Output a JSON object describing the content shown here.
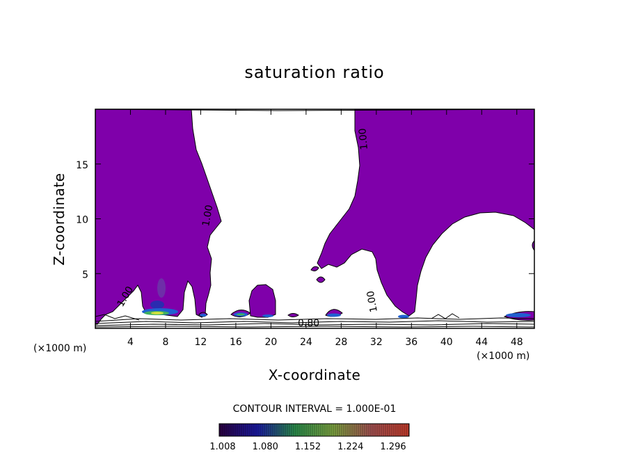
{
  "chart_data": {
    "type": "heatmap",
    "title": "saturation ratio",
    "xlabel": "X-coordinate",
    "ylabel": "Z-coordinate",
    "x_unit_label": "(×1000 m)",
    "xlim": [
      0,
      50
    ],
    "ylim": [
      0,
      20
    ],
    "x_ticks": [
      4,
      8,
      12,
      16,
      20,
      24,
      28,
      32,
      36,
      40,
      44,
      48
    ],
    "y_ticks": [
      5,
      10,
      15
    ],
    "contour_interval_label": "CONTOUR INTERVAL = 1.000E-01",
    "contour_labels": [
      "1.00",
      "1.00",
      "1.00",
      "1.00",
      "0.80"
    ],
    "colorbar": {
      "ticks": [
        "1.008",
        "1.080",
        "1.152",
        "1.224",
        "1.296"
      ],
      "colors": [
        "#2a0040",
        "#1a1aa0",
        "#2a8a4a",
        "#7aa040",
        "#a05050",
        "#c03a2a"
      ]
    },
    "fill_color": "#7f00aa",
    "background_color": "#ffffff"
  }
}
